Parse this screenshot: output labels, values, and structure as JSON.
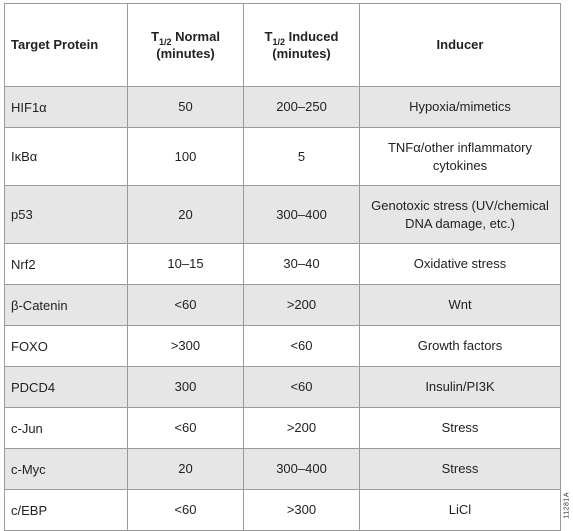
{
  "table": {
    "headers": {
      "target": "Target Protein",
      "normal": {
        "symbol": "T",
        "subscript": "1/2",
        "suffix": " Normal",
        "unit": "(minutes)"
      },
      "induced": {
        "symbol": "T",
        "subscript": "1/2",
        "suffix": " Induced",
        "unit": "(minutes)"
      },
      "inducer": "Inducer"
    },
    "rows": [
      {
        "target": "HIF1α",
        "normal": "50",
        "induced": "200–250",
        "inducer": "Hypoxia/mimetics"
      },
      {
        "target": "IκBα",
        "normal": "100",
        "induced": "5",
        "inducer": "TNFα/other inflammatory cytokines"
      },
      {
        "target": "p53",
        "normal": "20",
        "induced": "300–400",
        "inducer": "Genotoxic stress (UV/chemical DNA damage, etc.)"
      },
      {
        "target": "Nrf2",
        "normal": "10–15",
        "induced": "30–40",
        "inducer": "Oxidative stress"
      },
      {
        "target": "β-Catenin",
        "normal": "<60",
        "induced": ">200",
        "inducer": "Wnt"
      },
      {
        "target": "FOXO",
        "normal": ">300",
        "induced": "<60",
        "inducer": "Growth factors"
      },
      {
        "target": "PDCD4",
        "normal": "300",
        "induced": "<60",
        "inducer": "Insulin/PI3K"
      },
      {
        "target": "c-Jun",
        "normal": "<60",
        "induced": ">200",
        "inducer": "Stress"
      },
      {
        "target": "c-Myc",
        "normal": "20",
        "induced": "300–400",
        "inducer": "Stress"
      },
      {
        "target": "c/EBP",
        "normal": "<60",
        "induced": ">300",
        "inducer": "LiCl"
      }
    ]
  },
  "side_code": "11281A"
}
